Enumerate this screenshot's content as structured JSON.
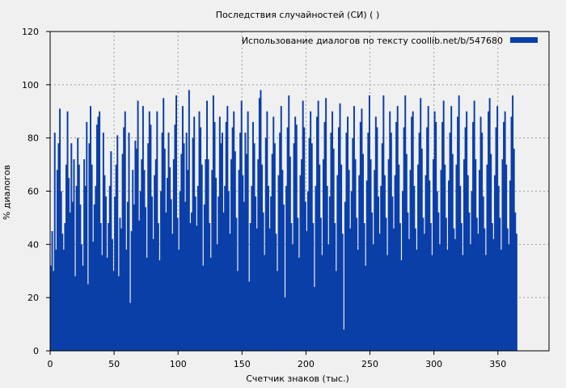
{
  "chart_data": {
    "type": "bar",
    "title": "Последствия случайностей (СИ) ( )",
    "xlabel": "Счетчик знаков (тыс.)",
    "ylabel": "% диалогов",
    "xlim": [
      0,
      390
    ],
    "ylim": [
      0,
      120
    ],
    "xticks": [
      0,
      50,
      100,
      150,
      200,
      250,
      300,
      350
    ],
    "yticks": [
      0,
      20,
      40,
      60,
      80,
      100,
      120
    ],
    "grid": true,
    "legend_position": "top-right",
    "series": [
      {
        "name": "Использование диалогов по тексту  coollib.net/b/547680",
        "color": "#0b3fa8",
        "bin_width": 1,
        "x_start": 0,
        "values": [
          32,
          45,
          30,
          82,
          38,
          68,
          78,
          91,
          60,
          44,
          38,
          48,
          70,
          90,
          65,
          52,
          78,
          56,
          72,
          28,
          62,
          80,
          70,
          55,
          40,
          32,
          72,
          62,
          86,
          25,
          78,
          92,
          70,
          41,
          55,
          62,
          85,
          88,
          90,
          48,
          36,
          82,
          66,
          58,
          35,
          48,
          62,
          75,
          42,
          30,
          58,
          70,
          81,
          28,
          50,
          46,
          74,
          84,
          90,
          38,
          56,
          82,
          18,
          45,
          68,
          55,
          79,
          76,
          94,
          49,
          60,
          72,
          92,
          68,
          54,
          35,
          78,
          90,
          85,
          58,
          42,
          66,
          72,
          90,
          48,
          34,
          60,
          82,
          95,
          76,
          52,
          65,
          82,
          69,
          57,
          44,
          72,
          85,
          96,
          50,
          38,
          60,
          74,
          92,
          78,
          56,
          82,
          68,
          98,
          48,
          52,
          80,
          88,
          58,
          47,
          62,
          90,
          84,
          70,
          32,
          55,
          72,
          94,
          72,
          48,
          35,
          68,
          96,
          86,
          65,
          40,
          58,
          88,
          78,
          82,
          52,
          62,
          86,
          92,
          60,
          44,
          72,
          84,
          90,
          75,
          50,
          30,
          68,
          82,
          94,
          66,
          56,
          82,
          74,
          90,
          26,
          48,
          62,
          86,
          78,
          58,
          46,
          72,
          95,
          98,
          70,
          52,
          36,
          80,
          90,
          62,
          46,
          58,
          74,
          88,
          78,
          44,
          30,
          66,
          82,
          92,
          68,
          55,
          20,
          62,
          84,
          96,
          73,
          48,
          40,
          78,
          88,
          85,
          50,
          35,
          66,
          72,
          94,
          84,
          56,
          45,
          60,
          80,
          90,
          78,
          48,
          24,
          62,
          88,
          94,
          70,
          50,
          36,
          72,
          86,
          95,
          62,
          40,
          58,
          82,
          90,
          76,
          48,
          30,
          66,
          84,
          93,
          70,
          44,
          8,
          56,
          82,
          88,
          68,
          46,
          60,
          80,
          92,
          72,
          50,
          38,
          66,
          86,
          91,
          74,
          48,
          32,
          64,
          82,
          96,
          72,
          52,
          40,
          68,
          88,
          84,
          58,
          44,
          62,
          78,
          96,
          66,
          50,
          36,
          72,
          90,
          82,
          58,
          46,
          66,
          86,
          92,
          70,
          48,
          34,
          60,
          84,
          96,
          74,
          52,
          42,
          68,
          88,
          90,
          62,
          46,
          38,
          70,
          82,
          95,
          76,
          50,
          44,
          66,
          84,
          92,
          64,
          48,
          36,
          72,
          90,
          86,
          60,
          52,
          40,
          68,
          86,
          94,
          70,
          50,
          38,
          64,
          82,
          92,
          74,
          46,
          42,
          70,
          88,
          96,
          62,
          48,
          36,
          72,
          84,
          90,
          66,
          52,
          40,
          60,
          86,
          94,
          72,
          50,
          44,
          68,
          88,
          82,
          58,
          46,
          36,
          70,
          90,
          95,
          74,
          48,
          42,
          66,
          84,
          92,
          62,
          50,
          38,
          72,
          86,
          90,
          70,
          46,
          40,
          64,
          88,
          96,
          76,
          52,
          44
        ]
      }
    ]
  }
}
